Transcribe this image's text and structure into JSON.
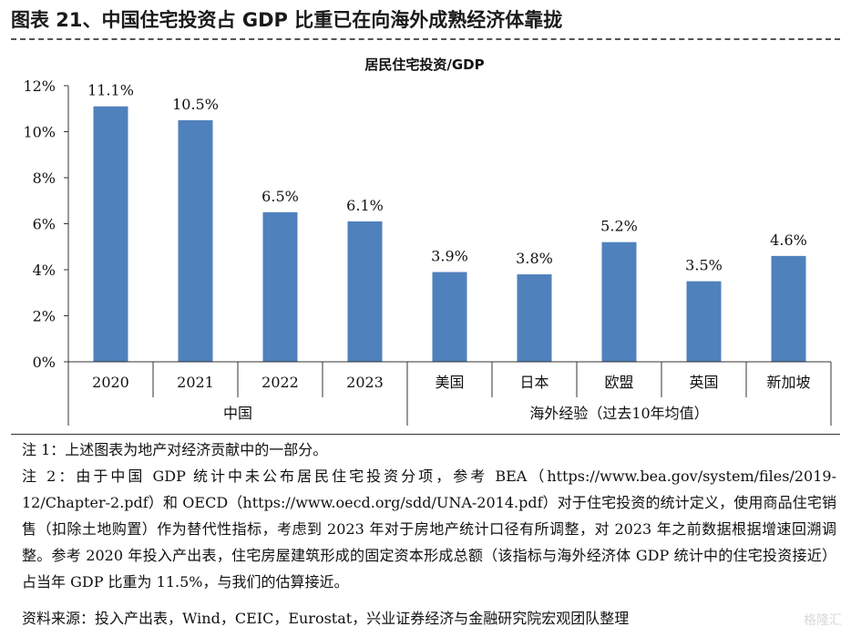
{
  "figure_title": "图表 21、中国住宅投资占 GDP 比重已在向海外成熟经济体靠拢",
  "chart_data": {
    "type": "bar",
    "title": "居民住宅投资/GDP",
    "categories": [
      "2020",
      "2021",
      "2022",
      "2023",
      "美国",
      "日本",
      "欧盟",
      "英国",
      "新加坡"
    ],
    "values": [
      11.1,
      10.5,
      6.5,
      6.1,
      3.9,
      3.8,
      5.2,
      3.5,
      4.6
    ],
    "value_labels": [
      "11.1%",
      "10.5%",
      "6.5%",
      "6.1%",
      "3.9%",
      "3.8%",
      "5.2%",
      "3.5%",
      "4.6%"
    ],
    "groups": [
      {
        "label": "中国",
        "count": 4
      },
      {
        "label": "海外经验（过去10年均值）",
        "count": 5
      }
    ],
    "yticks": [
      "0%",
      "2%",
      "4%",
      "6%",
      "8%",
      "10%",
      "12%"
    ],
    "ylim": [
      0,
      12
    ],
    "unit": "%",
    "bar_color": "#4f81bd",
    "grid": false,
    "legend": "none"
  },
  "notes": {
    "note1": "注 1：上述图表为地产对经济贡献中的一部分。",
    "note2": "注 2：由于中国 GDP 统计中未公布居民住宅投资分项，参考 BEA（https://www.bea.gov/system/files/2019-12/Chapter-2.pdf）和 OECD（https://www.oecd.org/sdd/UNA-2014.pdf）对于住宅投资的统计定义，使用商品住宅销售（扣除土地购置）作为替代性指标，考虑到 2023 年对于房地产统计口径有所调整，对 2023 年之前数据根据增速回溯调整。参考 2020 年投入产出表，住宅房屋建筑形成的固定资本形成总额（该指标与海外经济体 GDP 统计中的住宅投资接近）占当年 GDP 比重为 11.5%，与我们的估算接近。"
  },
  "source": "资料来源：投入产出表，Wind，CEIC，Eurostat，兴业证券经济与金融研究院宏观团队整理",
  "watermark": "格隆汇"
}
